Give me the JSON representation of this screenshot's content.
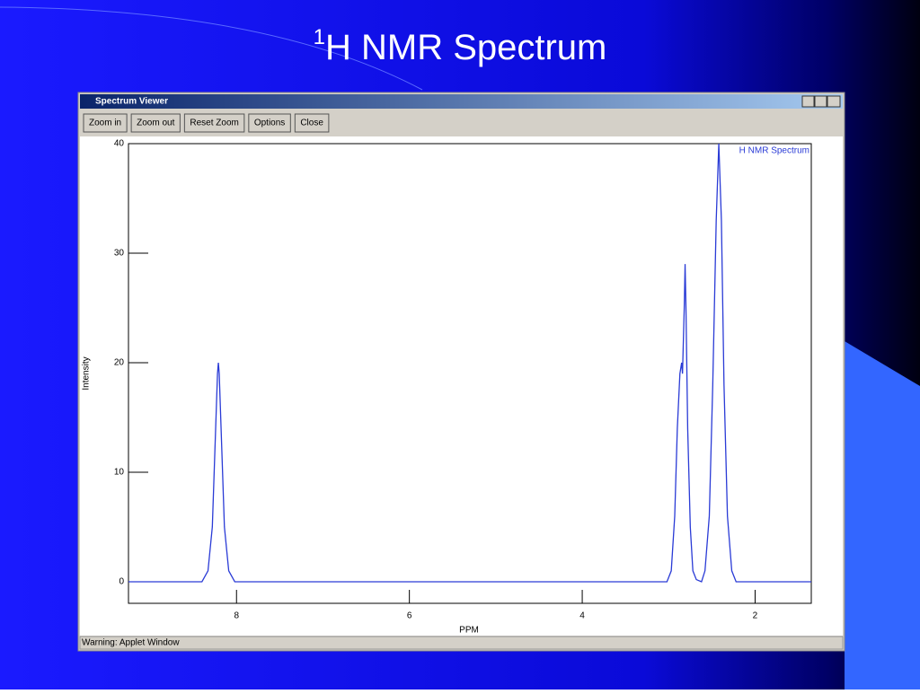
{
  "slide": {
    "title_superscript": "1",
    "title": "H NMR Spectrum"
  },
  "window": {
    "title": "Spectrum Viewer",
    "buttons": [
      "Zoom in",
      "Zoom out",
      "Reset Zoom",
      "Options",
      "Close"
    ],
    "status": "Warning: Applet Window"
  },
  "chart_data": {
    "type": "line",
    "xlabel": "PPM",
    "ylabel": "Intensity",
    "x": [
      9.25,
      8.4,
      8.33,
      8.28,
      8.25,
      8.22,
      8.21,
      8.2,
      8.17,
      8.14,
      8.09,
      8.02,
      3.02,
      2.97,
      2.93,
      2.9,
      2.87,
      2.85,
      2.84,
      2.82,
      2.81,
      2.8,
      2.78,
      2.75,
      2.72,
      2.68,
      2.62,
      2.58,
      2.53,
      2.49,
      2.45,
      2.42,
      2.39,
      2.36,
      2.32,
      2.27,
      2.22,
      1.35
    ],
    "series": [
      {
        "name": "H NMR Spectrum",
        "color": "#2a3bd6",
        "values": [
          0,
          0,
          1,
          5,
          12,
          19,
          20,
          19,
          12,
          5,
          1,
          0,
          0,
          1,
          6,
          14,
          19,
          20,
          19,
          25,
          29,
          25,
          14,
          5,
          1,
          0.2,
          0,
          1,
          6,
          18,
          33,
          40,
          33,
          18,
          6,
          1,
          0,
          0
        ]
      }
    ],
    "xlim": [
      9.25,
      1.35
    ],
    "xticks": [
      8,
      6,
      4,
      2
    ],
    "ylim": [
      0,
      40
    ],
    "yticks": [
      0,
      10,
      20,
      30,
      40
    ],
    "legend": "top-right"
  }
}
